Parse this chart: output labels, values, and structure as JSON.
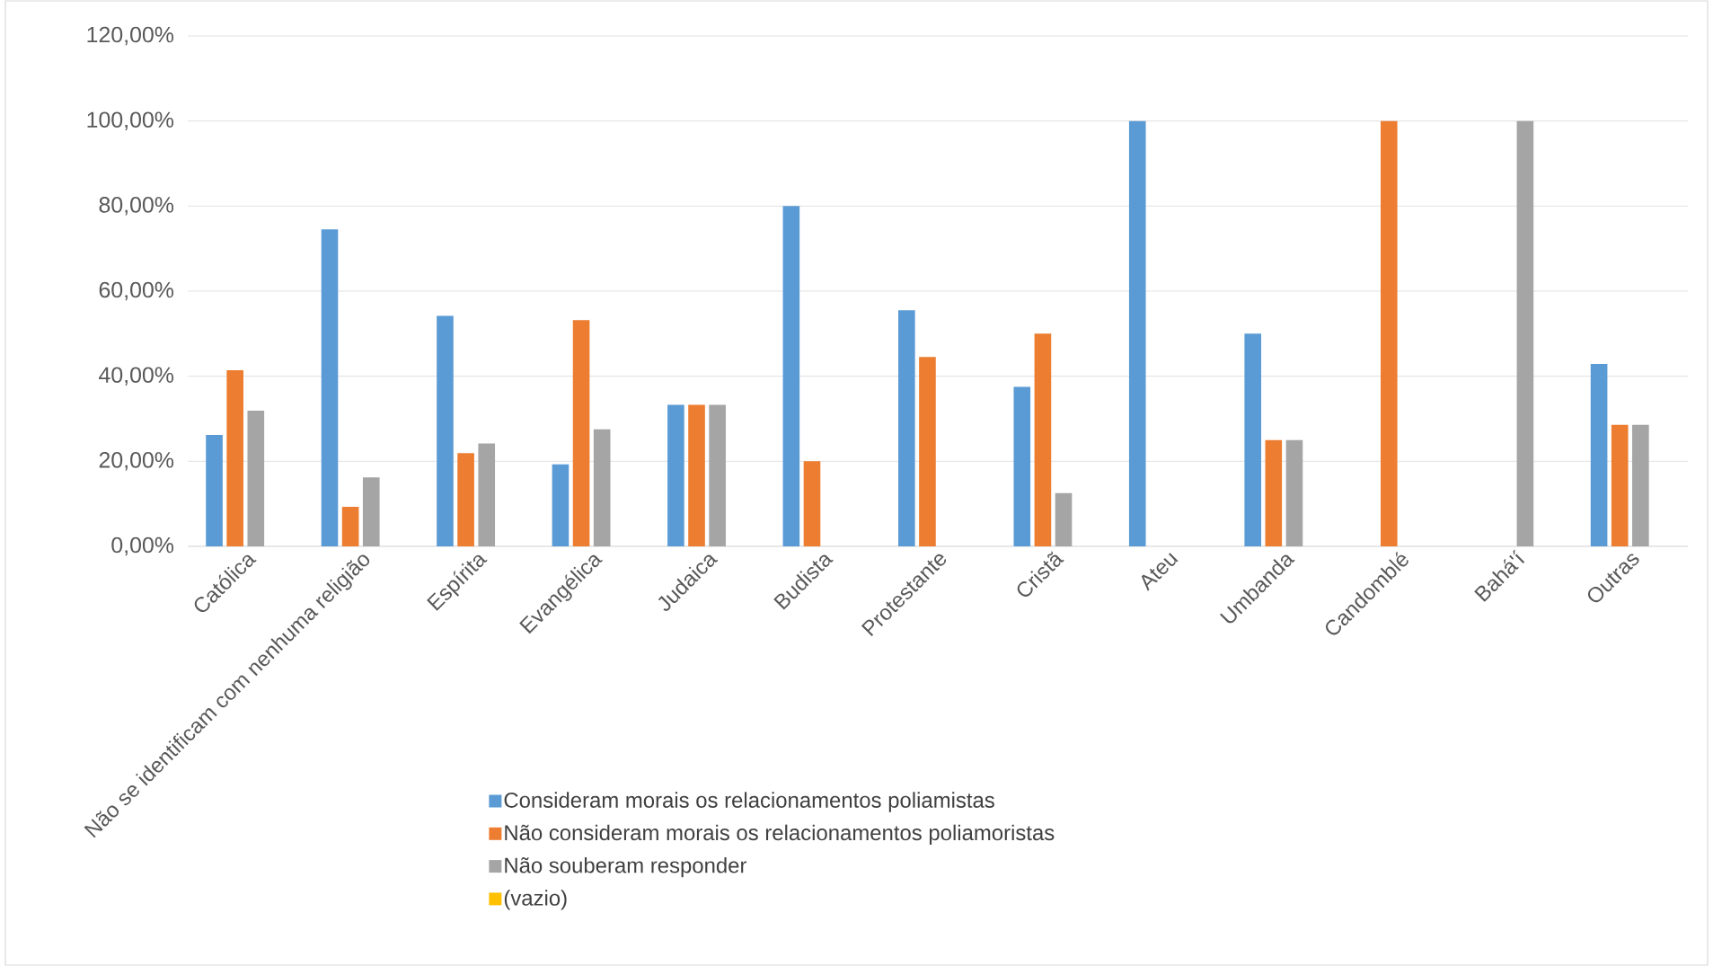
{
  "chart_data": {
    "type": "bar",
    "categories": [
      "Católica",
      "Não se identificam com nenhuma religião",
      "Espírita",
      "Evangélica",
      "Judaica",
      "Budista",
      "Protestante",
      "Cristã",
      "Ateu",
      "Umbanda",
      "Candomblé",
      "Bahá'í",
      "Outras"
    ],
    "series": [
      {
        "name": "Consideram morais os relacionamentos poliamistas",
        "color": "#5b9bd5",
        "values": [
          26.2,
          74.5,
          54.2,
          19.3,
          33.3,
          80,
          55.5,
          37.5,
          100,
          50,
          0,
          0,
          42.9
        ]
      },
      {
        "name": "Não consideram morais os relacionamentos poliamoristas",
        "color": "#ed7d31",
        "values": [
          41.4,
          9.3,
          21.9,
          53.2,
          33.3,
          20,
          44.5,
          50,
          0,
          25,
          100,
          0,
          28.6
        ]
      },
      {
        "name": "Não souberam responder",
        "color": "#a5a5a5",
        "values": [
          31.9,
          16.2,
          24.2,
          27.5,
          33.3,
          0,
          0,
          12.5,
          0,
          25,
          0,
          100,
          28.6
        ]
      },
      {
        "name": "(vazio)",
        "color": "#ffc000",
        "values": [
          0,
          null,
          null,
          null,
          null,
          null,
          null,
          null,
          null,
          null,
          null,
          null,
          null
        ]
      }
    ],
    "ylim": [
      0,
      120
    ],
    "yticks": [
      {
        "value": 0,
        "label": "0,00%"
      },
      {
        "value": 20,
        "label": "20,00%"
      },
      {
        "value": 40,
        "label": "40,00%"
      },
      {
        "value": 60,
        "label": "60,00%"
      },
      {
        "value": 80,
        "label": "80,00%"
      },
      {
        "value": 100,
        "label": "100,00%"
      },
      {
        "value": 120,
        "label": "120,00%"
      }
    ],
    "grid": "y",
    "legend": "bottom"
  }
}
